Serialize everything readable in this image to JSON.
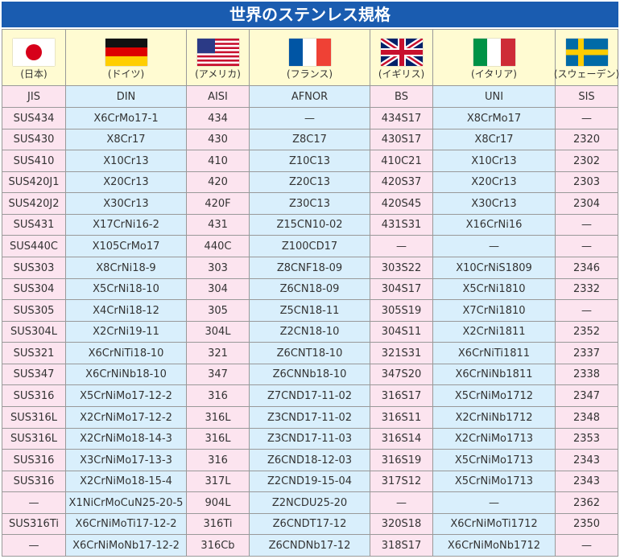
{
  "title": "世界のステンレス規格",
  "countries": [
    "(日本)",
    "(ドイツ)",
    "(アメリカ)",
    "(フランス)",
    "(イギリス)",
    "(イタリア)",
    "(スウェーデン)"
  ],
  "columns": [
    "JIS",
    "DIN",
    "AISI",
    "AFNOR",
    "BS",
    "UNI",
    "SIS"
  ],
  "rows": [
    [
      "SUS434",
      "X6CrMo17-1",
      "434",
      "—",
      "434S17",
      "X8CrMo17",
      "—"
    ],
    [
      "SUS430",
      "X8Cr17",
      "430",
      "Z8C17",
      "430S17",
      "X8Cr17",
      "2320"
    ],
    [
      "SUS410",
      "X10Cr13",
      "410",
      "Z10C13",
      "410C21",
      "X10Cr13",
      "2302"
    ],
    [
      "SUS420J1",
      "X20Cr13",
      "420",
      "Z20C13",
      "420S37",
      "X20Cr13",
      "2303"
    ],
    [
      "SUS420J2",
      "X30Cr13",
      "420F",
      "Z30C13",
      "420S45",
      "X30Cr13",
      "2304"
    ],
    [
      "SUS431",
      "X17CrNi16-2",
      "431",
      "Z15CN10-02",
      "431S31",
      "X16CrNi16",
      "—"
    ],
    [
      "SUS440C",
      "X105CrMo17",
      "440C",
      "Z100CD17",
      "—",
      "—",
      "—"
    ],
    [
      "SUS303",
      "X8CrNi18-9",
      "303",
      "Z8CNF18-09",
      "303S22",
      "X10CrNiS1809",
      "2346"
    ],
    [
      "SUS304",
      "X5CrNi18-10",
      "304",
      "Z6CN18-09",
      "304S17",
      "X5CrNi1810",
      "2332"
    ],
    [
      "SUS305",
      "X4CrNi18-12",
      "305",
      "Z5CN18-11",
      "305S19",
      "X7CrNi1810",
      "—"
    ],
    [
      "SUS304L",
      "X2CrNi19-11",
      "304L",
      "Z2CN18-10",
      "304S11",
      "X2CrNi1811",
      "2352"
    ],
    [
      "SUS321",
      "X6CrNiTi18-10",
      "321",
      "Z6CNT18-10",
      "321S31",
      "X6CrNiTi1811",
      "2337"
    ],
    [
      "SUS347",
      "X6CrNiNb18-10",
      "347",
      "Z6CNNb18-10",
      "347S20",
      "X6CrNiNb1811",
      "2338"
    ],
    [
      "SUS316",
      "X5CrNiMo17-12-2",
      "316",
      "Z7CND17-11-02",
      "316S17",
      "X5CrNiMo1712",
      "2347"
    ],
    [
      "SUS316L",
      "X2CrNiMo17-12-2",
      "316L",
      "Z3CND17-11-02",
      "316S11",
      "X2CrNiNb1712",
      "2348"
    ],
    [
      "SUS316L",
      "X2CrNiMo18-14-3",
      "316L",
      "Z3CND17-11-03",
      "316S14",
      "X2CrNiMo1713",
      "2353"
    ],
    [
      "SUS316",
      "X3CrNiMo17-13-3",
      "316",
      "Z6CND18-12-03",
      "316S19",
      "X5CrNiMo1713",
      "2343"
    ],
    [
      "SUS316",
      "X2CrNiMo18-15-4",
      "317L",
      "Z2CND19-15-04",
      "317S12",
      "X5CrNiMo1713",
      "2343"
    ],
    [
      "—",
      "X1NiCrMoCuN25-20-5",
      "904L",
      "Z2NCDU25-20",
      "—",
      "—",
      "2362"
    ],
    [
      "SUS316Ti",
      "X6CrNiMoTi17-12-2",
      "316Ti",
      "Z6CNDT17-12",
      "320S18",
      "X6CrNiMoTi1712",
      "2350"
    ],
    [
      "—",
      "X6CrNiMoNb17-12-2",
      "316Cb",
      "Z6CNDNb17-12",
      "318S17",
      "X6CrNiMoNb1712",
      "—"
    ]
  ]
}
